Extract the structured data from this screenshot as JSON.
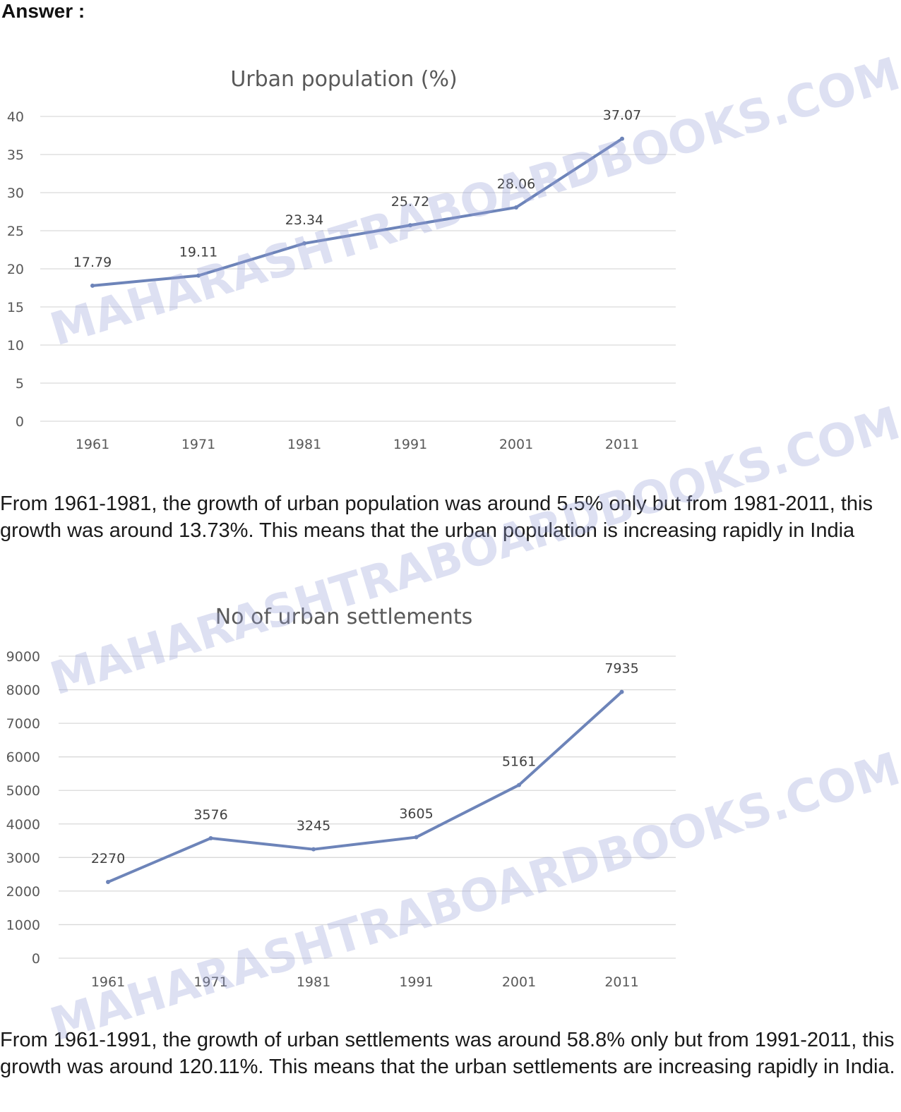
{
  "heading": "Answer :",
  "watermark": "MAHARASHTRABOARDBOOKS.COM",
  "colors": {
    "series": "#6d84b9",
    "grid": "#d9d9d9",
    "axis_text": "#595959"
  },
  "chart_data": [
    {
      "type": "line",
      "title": "Urban population (%)",
      "categories": [
        "1961",
        "1971",
        "1981",
        "1991",
        "2001",
        "2011"
      ],
      "series": [
        {
          "values": [
            17.79,
            19.11,
            23.34,
            25.72,
            28.06,
            37.07
          ]
        }
      ],
      "data_labels": [
        "17.79",
        "19.11",
        "23.34",
        "25.72",
        "28.06",
        "37.07"
      ],
      "ylim": [
        0,
        40
      ],
      "yticks": [
        0,
        5,
        10,
        15,
        20,
        25,
        30,
        35,
        40
      ],
      "grid": true,
      "legend": "none"
    },
    {
      "type": "line",
      "title": "No of urban settlements",
      "categories": [
        "1961",
        "1971",
        "1981",
        "1991",
        "2001",
        "2011"
      ],
      "series": [
        {
          "values": [
            2270,
            3576,
            3245,
            3605,
            5161,
            7935
          ]
        }
      ],
      "data_labels": [
        "2270",
        "3576",
        "3245",
        "3605",
        "5161",
        "7935"
      ],
      "ylim": [
        0,
        9000
      ],
      "yticks": [
        0,
        1000,
        2000,
        3000,
        4000,
        5000,
        6000,
        7000,
        8000,
        9000
      ],
      "grid": true,
      "legend": "none"
    }
  ],
  "paragraphs": [
    "From 1961-1981, the growth of urban population was around 5.5% only but from 1981-2011, this growth was around 13.73%. This means that the urban population is increasing rapidly in India",
    "From 1961-1991, the growth of urban settlements was around 58.8% only but from 1991-2011, this growth was around 120.11%. This means that the urban settlements are increasing rapidly in India."
  ]
}
